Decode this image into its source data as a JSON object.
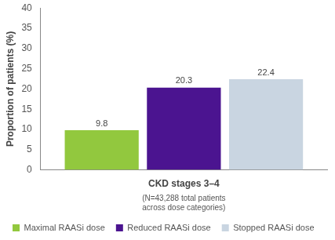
{
  "chart_data": {
    "type": "bar",
    "categories": [
      "CKD stages 3–4"
    ],
    "series": [
      {
        "name": "Maximal RAASi dose",
        "color": "#92c83e",
        "values": [
          9.8
        ]
      },
      {
        "name": "Reduced RAASi dose",
        "color": "#4b1490",
        "values": [
          20.3
        ]
      },
      {
        "name": "Stopped RAASi dose",
        "color": "#c9d5e1",
        "values": [
          22.4
        ]
      }
    ],
    "y_label": "Proportion of patients (%)",
    "annotation": "(N=43,288 total patients across dose categories)",
    "ylim": [
      0,
      40
    ],
    "yticks": [
      0,
      5,
      10,
      15,
      20,
      25,
      30,
      35,
      40
    ],
    "grid": false,
    "legend": "bottom",
    "data_labels": true
  }
}
